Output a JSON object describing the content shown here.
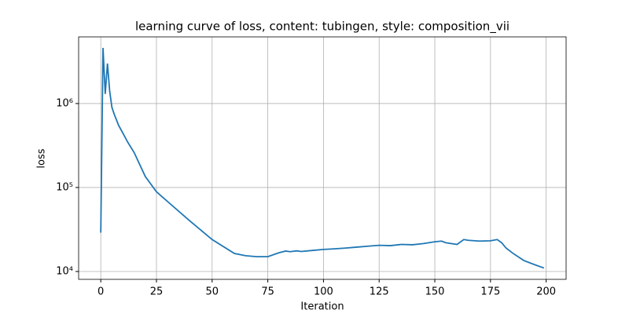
{
  "chart_data": {
    "type": "line",
    "title": "learning curve of loss, content: tubingen, style: composition_vii",
    "x_label": "Iteration",
    "y_label": "loss",
    "x": [
      0,
      1,
      2,
      3,
      4,
      5,
      6,
      8,
      10,
      12,
      15,
      20,
      25,
      30,
      40,
      50,
      60,
      65,
      70,
      75,
      80,
      83,
      85,
      88,
      90,
      95,
      100,
      105,
      110,
      115,
      120,
      125,
      130,
      135,
      140,
      145,
      150,
      153,
      155,
      160,
      163,
      165,
      170,
      175,
      178,
      180,
      182,
      185,
      190,
      195,
      199
    ],
    "series": [
      {
        "name": "loss",
        "color": "#1f77b4",
        "values": [
          29000,
          4600000,
          1300000,
          3000000,
          1400000,
          900000,
          750000,
          550000,
          440000,
          350000,
          260000,
          135000,
          89000,
          68000,
          40000,
          24000,
          16400,
          15400,
          15000,
          15000,
          16700,
          17500,
          17200,
          17600,
          17300,
          17800,
          18300,
          18600,
          19000,
          19500,
          20000,
          20500,
          20300,
          21000,
          20800,
          21500,
          22600,
          23000,
          22000,
          21000,
          24000,
          23500,
          23000,
          23200,
          24000,
          22000,
          19000,
          16500,
          13500,
          12000,
          11000
        ]
      }
    ],
    "xlim": [
      -9.95,
      208.95
    ],
    "xticks": [
      0,
      25,
      50,
      75,
      100,
      125,
      150,
      175,
      200
    ],
    "ylim": [
      8060,
      6220000
    ],
    "log_y": true,
    "yticks": [
      {
        "value": 10000,
        "label": "10⁴"
      },
      {
        "value": 100000,
        "label": "10⁵"
      },
      {
        "value": 1000000,
        "label": "10⁶"
      }
    ],
    "grid": true
  }
}
